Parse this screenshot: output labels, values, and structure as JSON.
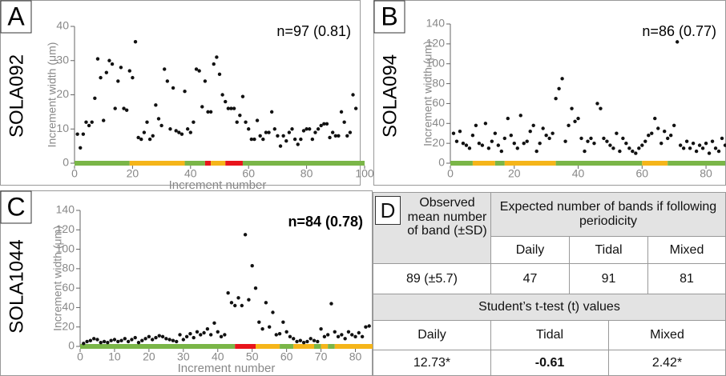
{
  "chart_data": [
    {
      "type": "scatter",
      "panel": "A",
      "sample": "SOLA092",
      "annotation": "n=97 (0.81)",
      "xlabel": "Increment number",
      "ylabel": "Increment width (μm)",
      "color": "#111111",
      "xlim": [
        0,
        100
      ],
      "xticks": [
        0,
        20,
        40,
        60,
        80,
        100
      ],
      "ylim": [
        0,
        40
      ],
      "yticks": [
        0,
        10,
        20,
        30,
        40
      ],
      "x": [
        1,
        2,
        3,
        4,
        5,
        6,
        7,
        8,
        9,
        10,
        11,
        12,
        13,
        14,
        15,
        16,
        17,
        18,
        19,
        20,
        21,
        22,
        23,
        24,
        25,
        26,
        27,
        28,
        29,
        30,
        31,
        32,
        33,
        34,
        35,
        36,
        37,
        38,
        39,
        40,
        41,
        42,
        43,
        44,
        45,
        46,
        47,
        48,
        49,
        50,
        51,
        52,
        53,
        54,
        55,
        56,
        57,
        58,
        59,
        60,
        61,
        62,
        63,
        64,
        65,
        66,
        67,
        68,
        69,
        70,
        71,
        72,
        73,
        74,
        75,
        76,
        77,
        78,
        79,
        80,
        81,
        82,
        83,
        84,
        85,
        86,
        87,
        88,
        89,
        90,
        91,
        92,
        93,
        94,
        95,
        96,
        97
      ],
      "values": [
        8.5,
        4.5,
        8.5,
        12,
        11,
        12,
        19,
        30.5,
        25,
        12.5,
        26.5,
        30,
        29,
        16,
        24,
        28,
        16,
        15.5,
        27,
        25,
        35.5,
        7.5,
        7,
        9,
        12,
        7,
        8,
        17,
        13,
        11,
        27.5,
        24,
        10,
        22,
        9.5,
        9,
        8.5,
        21,
        10,
        9,
        12,
        27.5,
        27,
        16.5,
        24,
        15,
        15,
        29,
        31,
        26,
        20,
        18,
        16,
        16,
        16,
        12,
        14,
        19.5,
        12,
        10,
        7,
        7,
        12.5,
        8,
        7,
        9,
        9,
        15,
        10,
        8,
        5,
        8,
        6.5,
        9,
        10,
        7,
        5.5,
        7,
        9.5,
        10,
        10,
        7,
        9,
        10,
        11,
        11.5,
        11.5,
        7.5,
        9,
        8,
        8,
        15,
        12,
        8,
        9,
        20,
        16
      ],
      "bands": [
        {
          "start": 0,
          "end": 19,
          "color": "#7ab648"
        },
        {
          "start": 19,
          "end": 38,
          "color": "#f5b51a"
        },
        {
          "start": 38,
          "end": 45,
          "color": "#7ab648"
        },
        {
          "start": 45,
          "end": 47,
          "color": "#e8141b"
        },
        {
          "start": 47,
          "end": 52,
          "color": "#f5b51a"
        },
        {
          "start": 52,
          "end": 58,
          "color": "#e8141b"
        },
        {
          "start": 58,
          "end": 100,
          "color": "#7ab648"
        }
      ]
    },
    {
      "type": "scatter",
      "panel": "B",
      "sample": "SOLA094",
      "annotation": "n=86 (0.77)",
      "ylabel": "Increment width (μm)",
      "color": "#111111",
      "xlim": [
        0,
        86
      ],
      "xticks": [
        0,
        20,
        40,
        60,
        80
      ],
      "ylim": [
        0,
        140
      ],
      "yticks": [
        0,
        20,
        40,
        60,
        80,
        100,
        120,
        140
      ],
      "x": [
        1,
        2,
        3,
        4,
        5,
        6,
        7,
        8,
        9,
        10,
        11,
        12,
        13,
        14,
        15,
        16,
        17,
        18,
        19,
        20,
        21,
        22,
        23,
        24,
        25,
        26,
        27,
        28,
        29,
        30,
        31,
        32,
        33,
        34,
        35,
        36,
        37,
        38,
        39,
        40,
        41,
        42,
        43,
        44,
        45,
        46,
        47,
        48,
        49,
        50,
        51,
        52,
        53,
        54,
        55,
        56,
        57,
        58,
        59,
        60,
        61,
        62,
        63,
        64,
        65,
        66,
        67,
        68,
        69,
        70,
        71,
        72,
        73,
        74,
        75,
        76,
        77,
        78,
        79,
        80,
        81,
        82,
        83,
        84,
        85,
        86
      ],
      "values": [
        30,
        22,
        32,
        20,
        18,
        15,
        28,
        38,
        20,
        18,
        40,
        15,
        22,
        30,
        18,
        12,
        25,
        45,
        28,
        20,
        15,
        48,
        20,
        22,
        32,
        38,
        12,
        20,
        35,
        28,
        25,
        30,
        65,
        75,
        85,
        22,
        38,
        55,
        42,
        45,
        25,
        12,
        22,
        25,
        20,
        60,
        55,
        25,
        22,
        18,
        15,
        30,
        12,
        25,
        20,
        15,
        12,
        10,
        15,
        18,
        22,
        28,
        30,
        45,
        35,
        20,
        32,
        25,
        28,
        38,
        122,
        18,
        15,
        22,
        15,
        20,
        12,
        18,
        15,
        20,
        10,
        22,
        15,
        12,
        25,
        18
      ],
      "bands": [
        {
          "start": 0,
          "end": 7,
          "color": "#7ab648"
        },
        {
          "start": 7,
          "end": 14,
          "color": "#f5b51a"
        },
        {
          "start": 14,
          "end": 17,
          "color": "#7ab648"
        },
        {
          "start": 17,
          "end": 33,
          "color": "#f5b51a"
        },
        {
          "start": 33,
          "end": 60,
          "color": "#7ab648"
        },
        {
          "start": 60,
          "end": 68,
          "color": "#f5b51a"
        },
        {
          "start": 68,
          "end": 86,
          "color": "#7ab648"
        }
      ]
    },
    {
      "type": "scatter",
      "panel": "C",
      "sample": "SOLA1044",
      "annotation": "n=84 (0.78)",
      "xlabel": "Increment number",
      "ylabel": "Increment width (μm)",
      "color": "#111111",
      "xlim": [
        0,
        85
      ],
      "xticks": [
        0,
        10,
        20,
        30,
        40,
        50,
        60,
        70,
        80
      ],
      "ylim": [
        0,
        140
      ],
      "yticks": [
        0,
        20,
        40,
        60,
        80,
        100,
        120,
        140
      ],
      "x": [
        1,
        2,
        3,
        4,
        5,
        6,
        7,
        8,
        9,
        10,
        11,
        12,
        13,
        14,
        15,
        16,
        17,
        18,
        19,
        20,
        21,
        22,
        23,
        24,
        25,
        26,
        27,
        28,
        29,
        30,
        31,
        32,
        33,
        34,
        35,
        36,
        37,
        38,
        39,
        40,
        41,
        42,
        43,
        44,
        45,
        46,
        47,
        48,
        49,
        50,
        51,
        52,
        53,
        54,
        55,
        56,
        57,
        58,
        59,
        60,
        61,
        62,
        63,
        64,
        65,
        66,
        67,
        68,
        69,
        70,
        71,
        72,
        73,
        74,
        75,
        76,
        77,
        78,
        79,
        80,
        81,
        82,
        83,
        84
      ],
      "values": [
        3,
        5,
        6,
        8,
        7,
        4,
        5,
        4,
        6,
        7,
        5,
        6,
        8,
        5,
        7,
        9,
        4,
        6,
        8,
        10,
        7,
        9,
        11,
        10,
        8,
        7,
        6,
        5,
        12,
        7,
        10,
        13,
        9,
        15,
        12,
        14,
        18,
        12,
        24,
        15,
        10,
        12,
        55,
        45,
        42,
        50,
        42,
        115,
        48,
        83,
        60,
        25,
        18,
        45,
        20,
        35,
        12,
        13,
        25,
        15,
        10,
        8,
        5,
        6,
        4,
        5,
        8,
        6,
        5,
        18,
        10,
        12,
        44,
        15,
        10,
        12,
        8,
        15,
        12,
        10,
        14,
        10,
        20,
        21
      ],
      "bands": [
        {
          "start": 0,
          "end": 45,
          "color": "#7ab648"
        },
        {
          "start": 45,
          "end": 51,
          "color": "#e8141b"
        },
        {
          "start": 51,
          "end": 58,
          "color": "#f5b51a"
        },
        {
          "start": 58,
          "end": 62,
          "color": "#7ab648"
        },
        {
          "start": 62,
          "end": 68,
          "color": "#f5b51a"
        },
        {
          "start": 68,
          "end": 70,
          "color": "#7ab648"
        },
        {
          "start": 70,
          "end": 72,
          "color": "#f5b51a"
        },
        {
          "start": 72,
          "end": 74,
          "color": "#7ab648"
        },
        {
          "start": 74,
          "end": 85,
          "color": "#f5b51a"
        }
      ]
    }
  ],
  "table": {
    "panel": "D",
    "observed_header": "Observed mean number of band (±SD)",
    "expected_header": "Expected number of bands if following periodicity",
    "columns": [
      "Daily",
      "Tidal",
      "Mixed"
    ],
    "observed_value": "89 (±5.7)",
    "expected_values": [
      "47",
      "91",
      "81"
    ],
    "ttest_header": "Student’s t-test (t) values",
    "ttest_columns": [
      "Daily",
      "Tidal",
      "Mixed"
    ],
    "ttest_values": [
      "12.73*",
      "-0.61",
      "2.42*"
    ]
  }
}
